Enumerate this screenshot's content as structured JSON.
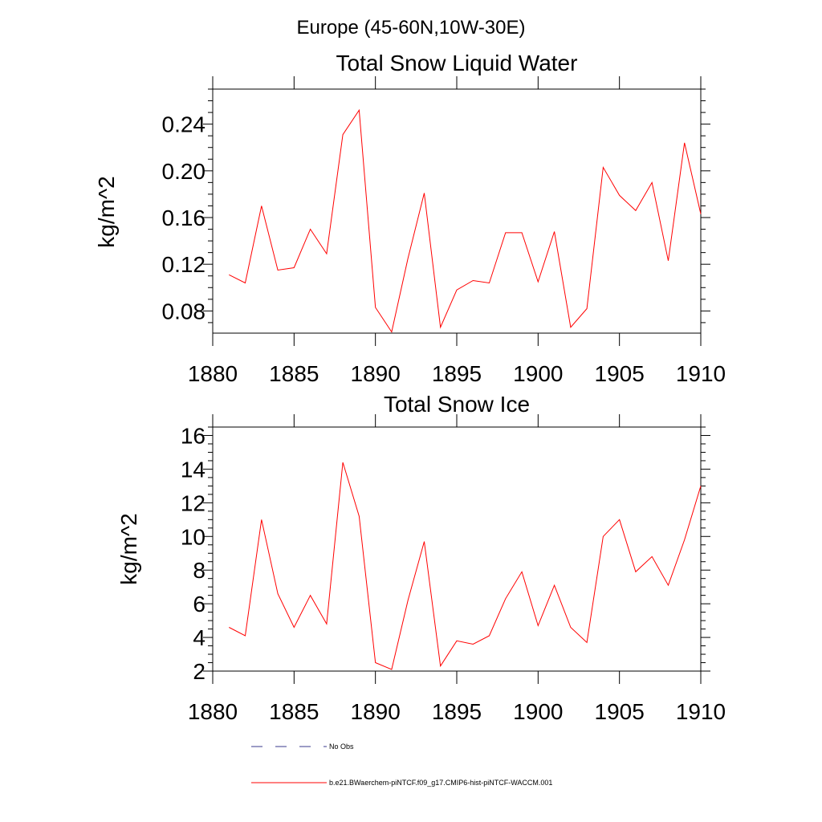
{
  "figure": {
    "suptitle": "Europe (45-60N,10W-30E)"
  },
  "chart_data": [
    {
      "type": "line",
      "title": "Total Snow Liquid Water",
      "xlabel": "",
      "ylabel": "kg/m^2",
      "xlim": [
        1880,
        1910
      ],
      "ylim": [
        0.061,
        0.27
      ],
      "xticks": [
        1880,
        1885,
        1890,
        1895,
        1900,
        1905,
        1910
      ],
      "xticklabels": [
        "1880",
        "1885",
        "1890",
        "1895",
        "1900",
        "1905",
        "1910"
      ],
      "yticks": [
        0.08,
        0.12,
        0.16,
        0.2,
        0.24
      ],
      "yticklabels": [
        "0.08",
        "0.12",
        "0.16",
        "0.20",
        "0.24"
      ],
      "series": [
        {
          "name": "b.e21.BWaerchem-piNTCF.f09_g17.CMIP6-hist-piNTCF-WACCM.001",
          "color": "#ff0000",
          "x": [
            1881,
            1882,
            1883,
            1884,
            1885,
            1886,
            1887,
            1888,
            1889,
            1890,
            1891,
            1892,
            1893,
            1894,
            1895,
            1896,
            1897,
            1898,
            1899,
            1900,
            1901,
            1902,
            1903,
            1904,
            1905,
            1906,
            1907,
            1908,
            1909,
            1910
          ],
          "y": [
            0.111,
            0.104,
            0.17,
            0.115,
            0.117,
            0.15,
            0.129,
            0.231,
            0.252,
            0.083,
            0.062,
            0.125,
            0.181,
            0.066,
            0.098,
            0.106,
            0.104,
            0.147,
            0.147,
            0.105,
            0.148,
            0.066,
            0.082,
            0.203,
            0.179,
            0.166,
            0.19,
            0.123,
            0.224,
            0.163
          ]
        }
      ]
    },
    {
      "type": "line",
      "title": "Total Snow Ice",
      "xlabel": "",
      "ylabel": "kg/m^2",
      "xlim": [
        1880,
        1910
      ],
      "ylim": [
        2,
        16.5
      ],
      "xticks": [
        1880,
        1885,
        1890,
        1895,
        1900,
        1905,
        1910
      ],
      "xticklabels": [
        "1880",
        "1885",
        "1890",
        "1895",
        "1900",
        "1905",
        "1910"
      ],
      "yticks": [
        2,
        4,
        6,
        8,
        10,
        12,
        14,
        16
      ],
      "yticklabels": [
        "2",
        "4",
        "6",
        "8",
        "10",
        "12",
        "14",
        "16"
      ],
      "series": [
        {
          "name": "b.e21.BWaerchem-piNTCF.f09_g17.CMIP6-hist-piNTCF-WACCM.001",
          "color": "#ff0000",
          "x": [
            1881,
            1882,
            1883,
            1884,
            1885,
            1886,
            1887,
            1888,
            1889,
            1890,
            1891,
            1892,
            1893,
            1894,
            1895,
            1896,
            1897,
            1898,
            1899,
            1900,
            1901,
            1902,
            1903,
            1904,
            1905,
            1906,
            1907,
            1908,
            1909,
            1910
          ],
          "y": [
            4.6,
            4.1,
            11.0,
            6.6,
            4.6,
            6.5,
            4.8,
            14.4,
            11.2,
            2.5,
            2.1,
            6.2,
            9.7,
            2.3,
            3.8,
            3.6,
            4.1,
            6.3,
            7.9,
            4.7,
            7.1,
            4.6,
            3.7,
            10.0,
            11.0,
            7.9,
            8.8,
            7.1,
            9.8,
            13.0
          ]
        }
      ]
    }
  ],
  "legend": {
    "items": [
      {
        "label": "No Obs",
        "style": "dashed",
        "color": "#3a3a8c"
      },
      {
        "label": "b.e21.BWaerchem-piNTCF.f09_g17.CMIP6-hist-piNTCF-WACCM.001",
        "style": "solid",
        "color": "#ff0000"
      }
    ]
  }
}
